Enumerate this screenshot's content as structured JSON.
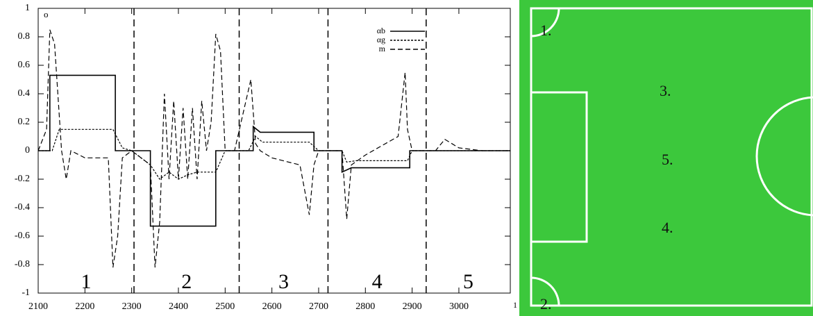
{
  "chart_data": {
    "type": "line",
    "xlim": [
      2100,
      3110
    ],
    "ylim": [
      -1,
      1
    ],
    "xticks": [
      2100,
      2200,
      2300,
      2400,
      2500,
      2600,
      2700,
      2800,
      2900,
      3000
    ],
    "yticks": [
      -1,
      -0.8,
      -0.6,
      -0.4,
      -0.2,
      0,
      0.2,
      0.4,
      0.6,
      0.8,
      1
    ],
    "boundaries": [
      2305,
      2530,
      2720,
      2930
    ],
    "regions": [
      "1",
      "2",
      "3",
      "4",
      "5"
    ],
    "corner_marks": [
      "o",
      "1"
    ],
    "series": [
      {
        "name": "αb",
        "color": "#000000",
        "dash": "solid",
        "x": [
          2100,
          2125,
          2125,
          2265,
          2265,
          2340,
          2340,
          2480,
          2480,
          2560,
          2560,
          2575,
          2690,
          2690,
          2750,
          2750,
          2770,
          2895,
          2895,
          3110
        ],
        "values": [
          0,
          0,
          0.53,
          0.53,
          0,
          0,
          -0.53,
          -0.53,
          0,
          0,
          0.17,
          0.13,
          0.13,
          0,
          0,
          -0.15,
          -0.12,
          -0.12,
          0,
          0
        ]
      },
      {
        "name": "αg",
        "color": "#000000",
        "dash": "dotted",
        "x": [
          2100,
          2130,
          2145,
          2260,
          2280,
          2300,
          2340,
          2360,
          2380,
          2400,
          2420,
          2440,
          2460,
          2480,
          2500,
          2550,
          2565,
          2580,
          2680,
          2700,
          2750,
          2760,
          2780,
          2890,
          2900,
          3110
        ],
        "values": [
          0,
          0,
          0.15,
          0.15,
          0.02,
          0,
          -0.1,
          -0.2,
          -0.15,
          -0.2,
          -0.17,
          -0.15,
          -0.15,
          -0.15,
          0,
          0,
          0.1,
          0.06,
          0.06,
          0,
          0,
          -0.08,
          -0.07,
          -0.07,
          0,
          0
        ]
      },
      {
        "name": "m",
        "color": "#000000",
        "dash": "dashed",
        "x": [
          2100,
          2118,
          2125,
          2135,
          2150,
          2160,
          2170,
          2200,
          2250,
          2260,
          2270,
          2280,
          2300,
          2340,
          2350,
          2360,
          2370,
          2380,
          2390,
          2400,
          2410,
          2420,
          2430,
          2440,
          2450,
          2460,
          2470,
          2480,
          2490,
          2500,
          2520,
          2555,
          2565,
          2575,
          2600,
          2660,
          2680,
          2690,
          2700,
          2750,
          2760,
          2770,
          2800,
          2870,
          2885,
          2890,
          2900,
          2950,
          2970,
          3000,
          3050,
          3110
        ],
        "values": [
          0,
          0.15,
          0.85,
          0.75,
          0,
          -0.2,
          0,
          -0.05,
          -0.05,
          -0.82,
          -0.6,
          -0.05,
          0,
          -0.1,
          -0.82,
          -0.5,
          0.4,
          -0.2,
          0.35,
          -0.2,
          0.3,
          -0.2,
          0.3,
          -0.2,
          0.35,
          0,
          0.2,
          0.82,
          0.7,
          0,
          0,
          0.5,
          0.05,
          0,
          -0.05,
          -0.1,
          -0.45,
          -0.1,
          0,
          0,
          -0.48,
          -0.1,
          -0.03,
          0.1,
          0.55,
          0.15,
          0,
          0,
          0.08,
          0.02,
          0,
          0
        ]
      }
    ]
  },
  "field": {
    "labels": [
      "1.",
      "2.",
      "3.",
      "4.",
      "5."
    ]
  }
}
